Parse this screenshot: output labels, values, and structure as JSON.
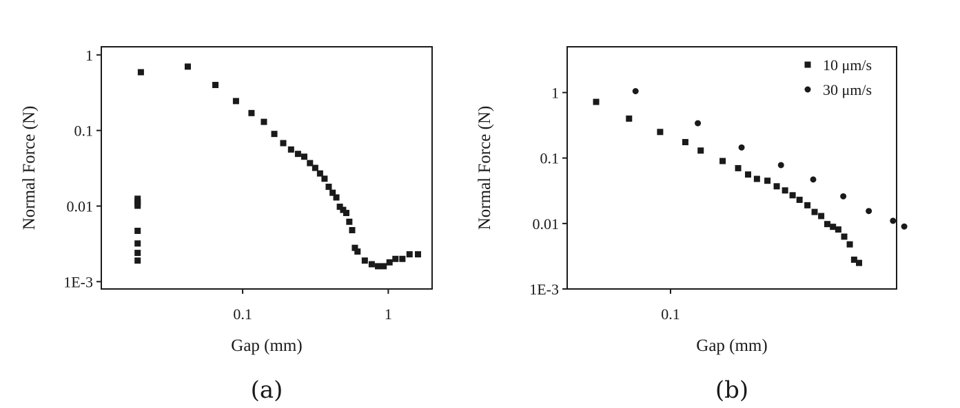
{
  "chart_data": [
    {
      "type": "scatter",
      "caption": "(a)",
      "xlabel": "Gap (mm)",
      "ylabel": "Normal Force (N)",
      "xscale": "log",
      "yscale": "log",
      "xlim": [
        0.0107,
        2.0
      ],
      "ylim": [
        0.0008,
        1.28
      ],
      "xticks": [
        {
          "value": 0.1,
          "label": "0.1"
        },
        {
          "value": 1,
          "label": "1"
        }
      ],
      "yticks": [
        {
          "value": 1,
          "label": "1"
        },
        {
          "value": 0.1,
          "label": "0.1"
        },
        {
          "value": 0.01,
          "label": "0.01"
        },
        {
          "value": 0.001,
          "label": "1E-3"
        }
      ],
      "grid": false,
      "series": [
        {
          "marker": "square",
          "color": "#1a1a1a",
          "points": [
            [
              0.02,
              0.59
            ],
            [
              0.019,
              0.0125
            ],
            [
              0.019,
              0.0115
            ],
            [
              0.019,
              0.0108
            ],
            [
              0.019,
              0.0101
            ],
            [
              0.019,
              0.0047
            ],
            [
              0.019,
              0.0032
            ],
            [
              0.019,
              0.0024
            ],
            [
              0.019,
              0.0019
            ],
            [
              0.042,
              0.7
            ],
            [
              0.065,
              0.4
            ],
            [
              0.09,
              0.245
            ],
            [
              0.115,
              0.17
            ],
            [
              0.14,
              0.13
            ],
            [
              0.165,
              0.09
            ],
            [
              0.19,
              0.068
            ],
            [
              0.215,
              0.056
            ],
            [
              0.24,
              0.049
            ],
            [
              0.265,
              0.045
            ],
            [
              0.29,
              0.037
            ],
            [
              0.315,
              0.032
            ],
            [
              0.34,
              0.027
            ],
            [
              0.365,
              0.023
            ],
            [
              0.39,
              0.018
            ],
            [
              0.415,
              0.015
            ],
            [
              0.44,
              0.013
            ],
            [
              0.465,
              0.0098
            ],
            [
              0.49,
              0.0089
            ],
            [
              0.515,
              0.0081
            ],
            [
              0.54,
              0.0062
            ],
            [
              0.565,
              0.0048
            ],
            [
              0.59,
              0.0028
            ],
            [
              0.615,
              0.0025
            ],
            [
              0.69,
              0.0019
            ],
            [
              0.77,
              0.0017
            ],
            [
              0.85,
              0.0016
            ],
            [
              0.93,
              0.0016
            ],
            [
              1.02,
              0.0018
            ],
            [
              1.12,
              0.002
            ],
            [
              1.25,
              0.002
            ],
            [
              1.4,
              0.0023
            ],
            [
              1.6,
              0.0023
            ]
          ]
        }
      ]
    },
    {
      "type": "scatter",
      "caption": "(b)",
      "xlabel": "Gap (mm)",
      "ylabel": "Normal Force (N)",
      "xscale": "log",
      "yscale": "log",
      "xlim": [
        0.028,
        1.62
      ],
      "ylim": [
        0.001,
        5.0
      ],
      "xticks": [
        {
          "value": 0.1,
          "label": "0.1"
        }
      ],
      "yticks": [
        {
          "value": 1,
          "label": "1"
        },
        {
          "value": 0.1,
          "label": "0.1"
        },
        {
          "value": 0.01,
          "label": "0.01"
        },
        {
          "value": 0.001,
          "label": "1E-3"
        }
      ],
      "grid": false,
      "legend": "top-right",
      "series": [
        {
          "name": "10 μm/s",
          "marker": "square",
          "color": "#1a1a1a",
          "points": [
            [
              0.04,
              0.72
            ],
            [
              0.06,
              0.4
            ],
            [
              0.088,
              0.25
            ],
            [
              0.12,
              0.175
            ],
            [
              0.145,
              0.13
            ],
            [
              0.19,
              0.09
            ],
            [
              0.23,
              0.07
            ],
            [
              0.26,
              0.056
            ],
            [
              0.29,
              0.048
            ],
            [
              0.33,
              0.045
            ],
            [
              0.37,
              0.037
            ],
            [
              0.41,
              0.032
            ],
            [
              0.45,
              0.027
            ],
            [
              0.49,
              0.023
            ],
            [
              0.54,
              0.019
            ],
            [
              0.59,
              0.015
            ],
            [
              0.64,
              0.013
            ],
            [
              0.69,
              0.0098
            ],
            [
              0.74,
              0.0089
            ],
            [
              0.79,
              0.0081
            ],
            [
              0.85,
              0.0063
            ],
            [
              0.91,
              0.0048
            ],
            [
              0.96,
              0.0028
            ],
            [
              1.02,
              0.0025
            ]
          ]
        },
        {
          "name": "30 μm/s",
          "marker": "circle",
          "color": "#1a1a1a",
          "points": [
            [
              0.065,
              1.05
            ],
            [
              0.14,
              0.34
            ],
            [
              0.24,
              0.145
            ],
            [
              0.39,
              0.078
            ],
            [
              0.58,
              0.047
            ],
            [
              0.84,
              0.026
            ],
            [
              1.15,
              0.0155
            ],
            [
              1.55,
              0.011
            ],
            [
              1.78,
              0.009
            ]
          ]
        }
      ]
    }
  ]
}
